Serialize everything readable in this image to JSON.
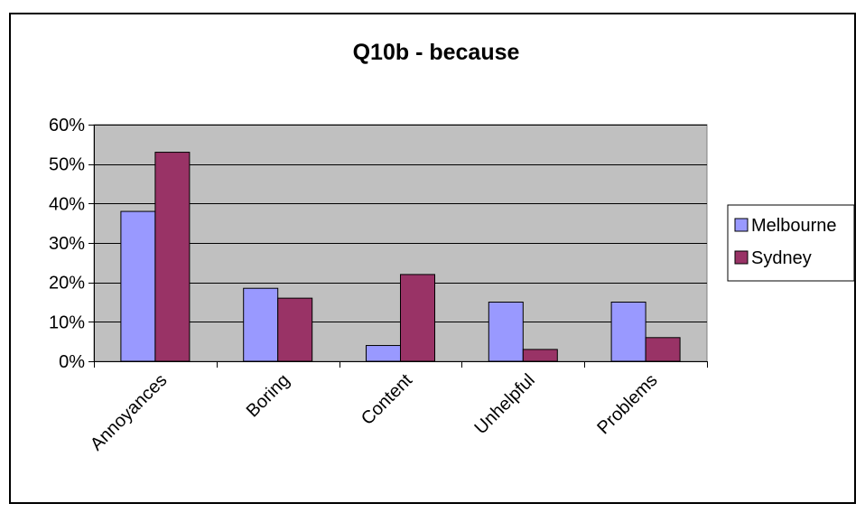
{
  "chart_data": {
    "type": "bar",
    "title": "Q10b - because",
    "xlabel": "",
    "ylabel": "",
    "categories": [
      "Annoyances",
      "Boring",
      "Content",
      "Unhelpful",
      "Problems"
    ],
    "series": [
      {
        "name": "Melbourne",
        "values": [
          0.38,
          0.185,
          0.04,
          0.15,
          0.15
        ]
      },
      {
        "name": "Sydney",
        "values": [
          0.53,
          0.16,
          0.22,
          0.03,
          0.06
        ]
      }
    ],
    "ylim": [
      0,
      0.6
    ],
    "yticks": [
      0,
      0.1,
      0.2,
      0.3,
      0.4,
      0.5,
      0.6
    ],
    "ytick_labels": [
      "0%",
      "10%",
      "20%",
      "30%",
      "40%",
      "50%",
      "60%"
    ],
    "grid": true,
    "legend_position": "right",
    "colors": {
      "Melbourne": "#9999ff",
      "Sydney": "#993366",
      "plot_background": "#c0c0c0",
      "gridline": "#000000"
    }
  }
}
